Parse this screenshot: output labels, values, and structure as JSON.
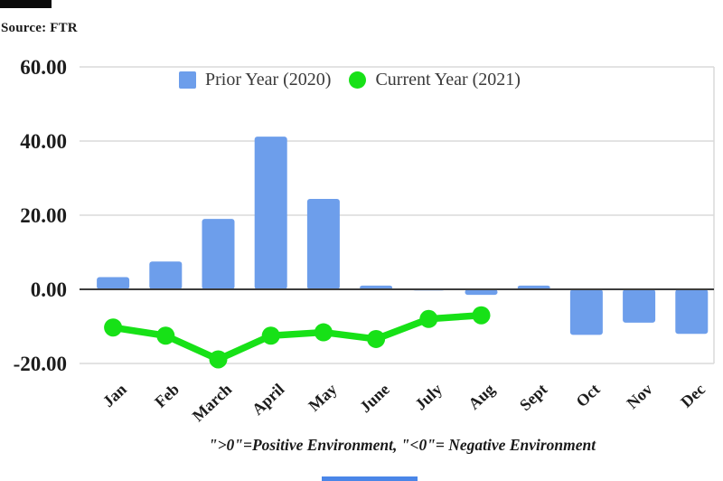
{
  "source": {
    "text": "Source: FTR"
  },
  "caption": {
    "text": "\">0\"=Positive Environment, \"<0\"= Negative Environment"
  },
  "artifacts": {
    "top_bar_color": "#0a0a0a",
    "bottom_bar_color": "#4a86e8"
  },
  "chart_data": {
    "type": "combo",
    "categories": [
      "Jan",
      "Feb",
      "March",
      "April",
      "May",
      "June",
      "July",
      "Aug",
      "Sept",
      "Oct",
      "Nov",
      "Dec"
    ],
    "series": [
      {
        "name": "Prior Year (2020)",
        "type": "bar",
        "color": "#6d9eeb",
        "values": [
          3.3,
          7.5,
          19.0,
          41.2,
          24.4,
          1.0,
          -0.3,
          -1.5,
          1.0,
          -12.3,
          -9.0,
          -12.0
        ]
      },
      {
        "name": "Current Year (2021)",
        "type": "line",
        "color": "#17e117",
        "values": [
          -10.3,
          -12.5,
          -18.9,
          -12.5,
          -11.6,
          -13.4,
          -8.0,
          -7.0,
          null,
          null,
          null,
          null
        ]
      }
    ],
    "yticks": [
      {
        "label": "60.00",
        "value": 60
      },
      {
        "label": "40.00",
        "value": 40
      },
      {
        "label": "20.00",
        "value": 20
      },
      {
        "label": "0.00",
        "value": 0
      },
      {
        "label": "-20.00",
        "value": -20
      }
    ],
    "ylim": [
      -20,
      60
    ],
    "grid": true,
    "legend_position": "top",
    "colors": {
      "axis_line": "#3d3d3d",
      "gridline": "#dadada",
      "tick_text": "#1c1c1c",
      "legend_text": "#3a3a3a"
    }
  }
}
